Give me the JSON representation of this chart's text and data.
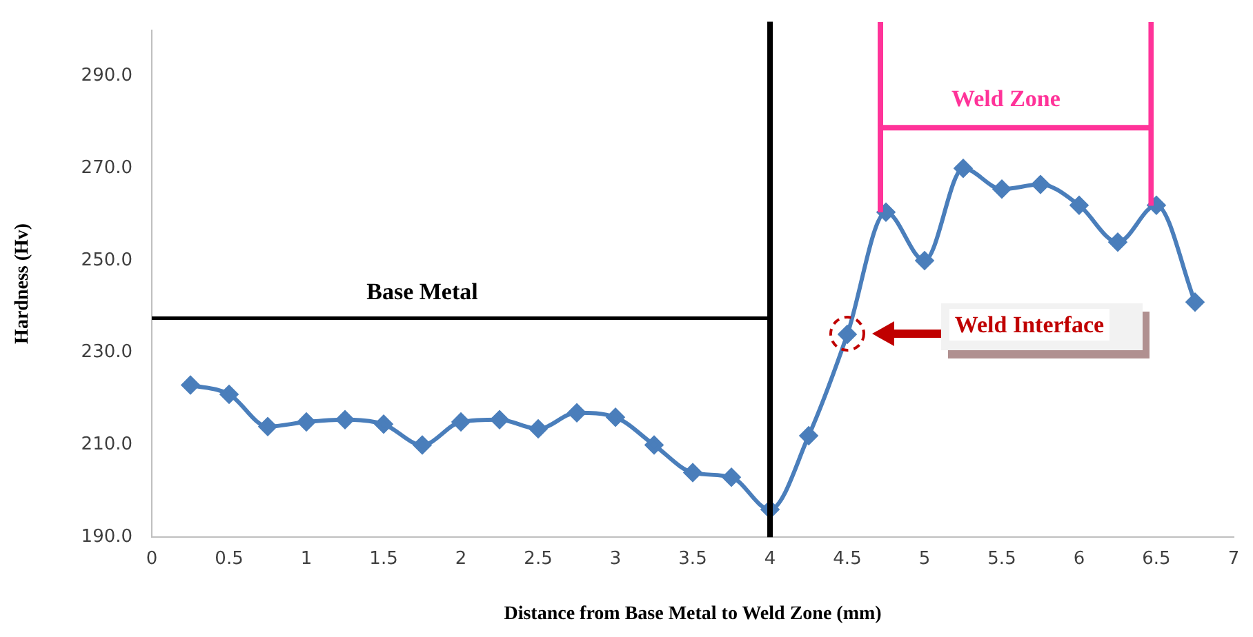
{
  "chart_data": {
    "type": "line",
    "xlabel": "Distance from Base Metal to Weld Zone (mm)",
    "ylabel": "Hardness (Hv)",
    "x": [
      0.25,
      0.5,
      0.75,
      1.0,
      1.25,
      1.5,
      1.75,
      2.0,
      2.25,
      2.5,
      2.75,
      3.0,
      3.25,
      3.5,
      3.75,
      4.0,
      4.25,
      4.5,
      4.75,
      5.0,
      5.25,
      5.5,
      5.75,
      6.0,
      6.25,
      6.5,
      6.75
    ],
    "series": [
      {
        "color": "#4a7ebb",
        "values": [
          223,
          221,
          214,
          215,
          215.5,
          214.5,
          210,
          215,
          215.5,
          213.5,
          217,
          216,
          210,
          204,
          203,
          196,
          212,
          234,
          260.5,
          250,
          270,
          265.5,
          266.5,
          262,
          254,
          262,
          241
        ]
      }
    ],
    "xlim": [
      0,
      7
    ],
    "xticks": [
      0,
      {
        "value": 0.5,
        "label": "0.5"
      },
      1,
      {
        "value": 1.5,
        "label": "1.5"
      },
      2,
      {
        "value": 2.5,
        "label": "2.5"
      },
      3,
      {
        "value": 3.5,
        "label": "3.5"
      },
      4,
      {
        "value": 4.5,
        "label": "4.5"
      },
      5,
      {
        "value": 5.5,
        "label": "5.5"
      },
      6,
      {
        "value": 6.5,
        "label": "6.5"
      },
      7
    ],
    "ylim": [
      190,
      300
    ],
    "yticks": [
      {
        "value": 190,
        "label": "190.0"
      },
      {
        "value": 210,
        "label": "210.0"
      },
      {
        "value": 230,
        "label": "230.0"
      },
      {
        "value": 250,
        "label": "250.0"
      },
      {
        "value": 270,
        "label": "270.0"
      },
      {
        "value": 290,
        "label": "290.0"
      }
    ],
    "ref_lines": [
      {
        "axis": "x",
        "value": 4,
        "color": "#000000"
      }
    ],
    "annotations": [
      "Base Metal",
      "Weld Zone",
      "Weld Interface"
    ],
    "grid": false,
    "legend": false,
    "marker": "diamond",
    "line_style": "solid"
  }
}
